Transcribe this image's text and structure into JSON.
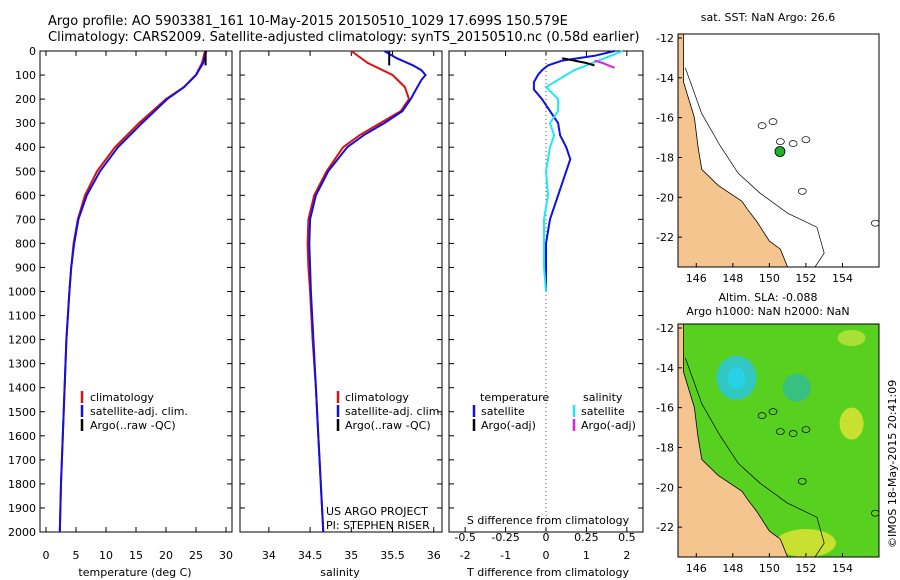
{
  "header": {
    "line1": "Argo profile: AO 5903381_161 10-May-2015 20150510_1029 17.699S 150.579E",
    "line2": "Climatology: CARS2009. Satellite-adjusted climatology: synTS_20150510.nc (0.58d earlier)"
  },
  "credits": {
    "project": "US ARGO PROJECT",
    "pi": "PI: STEPHEN RISER",
    "stamp": "©IMOS 18-May-2015 20:41:09"
  },
  "colors": {
    "red": "#e01010",
    "blue": "#1010e0",
    "black": "#000000",
    "cyan": "#20e8f0",
    "magenta": "#e020e0",
    "land": "#f5c590",
    "green_bg": "#58d020"
  },
  "chart_data": [
    {
      "type": "line",
      "id": "temperature",
      "xlabel": "temperature (deg C)",
      "ylabel": "",
      "xlim": [
        -1,
        31
      ],
      "ylim": [
        2000,
        0
      ],
      "xticks": [
        0,
        5,
        10,
        15,
        20,
        25,
        30
      ],
      "yticks": [
        0,
        100,
        200,
        300,
        400,
        500,
        600,
        700,
        800,
        900,
        1000,
        1100,
        1200,
        1300,
        1400,
        1500,
        1600,
        1700,
        1800,
        1900,
        2000
      ],
      "legend": [
        "climatology",
        "satellite-adj. clim.",
        "Argo(..raw -QC)"
      ],
      "series": [
        {
          "name": "climatology",
          "color": "red",
          "depth": [
            0,
            50,
            100,
            150,
            200,
            300,
            400,
            500,
            600,
            700,
            800,
            900,
            1000,
            1200,
            1400,
            1600,
            1800,
            2000
          ],
          "values": [
            26.5,
            26.0,
            25.0,
            23.0,
            20.0,
            15.5,
            11.5,
            8.5,
            6.5,
            5.3,
            4.6,
            4.2,
            3.9,
            3.4,
            3.1,
            2.8,
            2.5,
            2.3
          ]
        },
        {
          "name": "satellite-adj. clim.",
          "color": "blue",
          "depth": [
            0,
            50,
            100,
            150,
            200,
            300,
            400,
            500,
            600,
            700,
            800,
            900,
            1000,
            1200,
            1400,
            1600,
            1800,
            2000
          ],
          "values": [
            26.7,
            26.2,
            25.0,
            23.0,
            20.2,
            16.0,
            12.0,
            9.0,
            6.8,
            5.4,
            4.7,
            4.2,
            3.9,
            3.4,
            3.1,
            2.8,
            2.5,
            2.3
          ]
        },
        {
          "name": "Argo(..raw -QC)",
          "color": "black",
          "depth": [
            0,
            60
          ],
          "values": [
            26.6,
            26.6
          ]
        }
      ]
    },
    {
      "type": "line",
      "id": "salinity",
      "xlabel": "salinity",
      "xlim": [
        33.65,
        36.1
      ],
      "ylim": [
        2000,
        0
      ],
      "xticks": [
        34,
        34.5,
        35,
        35.5,
        36
      ],
      "legend": [
        "climatology",
        "satellite-adj. clim.",
        "Argo(..raw -QC)"
      ],
      "series": [
        {
          "name": "climatology",
          "color": "red",
          "depth": [
            0,
            50,
            100,
            150,
            200,
            250,
            300,
            350,
            400,
            500,
            600,
            700,
            800,
            900,
            1000,
            1200,
            1400,
            1600,
            1800,
            2000
          ],
          "values": [
            35.0,
            35.2,
            35.5,
            35.65,
            35.7,
            35.6,
            35.35,
            35.1,
            34.9,
            34.7,
            34.55,
            34.48,
            34.47,
            34.48,
            34.5,
            34.53,
            34.57,
            34.6,
            34.63,
            34.66
          ]
        },
        {
          "name": "satellite-adj. clim.",
          "color": "blue",
          "depth": [
            0,
            30,
            60,
            80,
            100,
            120,
            150,
            200,
            250,
            300,
            350,
            400,
            500,
            600,
            700,
            800,
            900,
            1000,
            1200,
            1400,
            1600,
            1800,
            2000
          ],
          "values": [
            35.4,
            35.55,
            35.75,
            35.85,
            35.9,
            35.85,
            35.8,
            35.72,
            35.62,
            35.4,
            35.15,
            34.95,
            34.72,
            34.57,
            34.5,
            34.49,
            34.5,
            34.51,
            34.54,
            34.57,
            34.6,
            34.63,
            34.66
          ]
        },
        {
          "name": "Argo(..raw -QC)",
          "color": "black",
          "depth": [
            0,
            60
          ],
          "values": [
            35.46,
            35.46
          ]
        }
      ]
    },
    {
      "type": "line",
      "id": "difference",
      "xlabel": "T difference from climatology",
      "xlabel_top": "S difference from climatology",
      "xlim": [
        -2.4,
        2.4
      ],
      "ylim": [
        2000,
        0
      ],
      "xticks": [
        -2,
        -1,
        0,
        1,
        2
      ],
      "xticks_s": [
        -0.5,
        -0.25,
        0,
        0.25,
        0.5
      ],
      "legend_temperature_title": "temperature",
      "legend_salinity_title": "salinity",
      "legend_temperature": [
        "satellite",
        "Argo(-adj)"
      ],
      "legend_salinity": [
        "satellite",
        "Argo(-adj)"
      ],
      "series": [
        {
          "name": "temperature satellite",
          "color": "blue",
          "depth": [
            0,
            20,
            40,
            60,
            80,
            100,
            130,
            160,
            200,
            250,
            300,
            350,
            400,
            450,
            500,
            600,
            700,
            800,
            900,
            1000
          ],
          "values": [
            1.7,
            1.2,
            0.4,
            0.05,
            -0.1,
            -0.2,
            -0.3,
            -0.3,
            -0.1,
            0.1,
            0.3,
            0.35,
            0.5,
            0.6,
            0.5,
            0.3,
            0.1,
            0.0,
            0.0,
            0.0
          ]
        },
        {
          "name": "salinity satellite",
          "color": "cyan",
          "depth": [
            0,
            20,
            40,
            60,
            80,
            100,
            150,
            200,
            250,
            300,
            350,
            400,
            500,
            600,
            700,
            800,
            900,
            1000
          ],
          "values": [
            1.9,
            1.6,
            1.3,
            1.0,
            0.7,
            0.5,
            0.0,
            0.3,
            0.3,
            0.1,
            0.2,
            0.1,
            0.0,
            0.05,
            -0.05,
            -0.05,
            -0.05,
            0.0
          ]
        },
        {
          "name": "temperature Argo(-adj)",
          "color": "black",
          "depth": [
            30,
            40,
            50,
            60
          ],
          "values": [
            0.4,
            0.7,
            1.0,
            1.2
          ]
        },
        {
          "name": "salinity Argo(-adj)",
          "color": "magenta",
          "depth": [
            40,
            50,
            60,
            70
          ],
          "values": [
            1.2,
            1.4,
            1.55,
            1.7
          ]
        }
      ]
    },
    {
      "type": "heatmap",
      "id": "sst-map",
      "title": "sat. SST: NaN Argo: 26.6",
      "xlim": [
        145,
        156
      ],
      "ylim": [
        -23.5,
        -11.8
      ],
      "xticks": [
        146,
        148,
        150,
        152,
        154
      ],
      "yticks": [
        -12,
        -14,
        -16,
        -18,
        -20,
        -22
      ],
      "argo_point": [
        150.58,
        -17.7
      ]
    },
    {
      "type": "heatmap",
      "id": "sla-map",
      "title": "Altim. SLA: -0.088",
      "subtitle": "Argo h1000: NaN h2000: NaN",
      "xlim": [
        145,
        156
      ],
      "ylim": [
        -23.5,
        -11.8
      ],
      "xticks": [
        146,
        148,
        150,
        152,
        154
      ],
      "yticks": [
        -12,
        -14,
        -16,
        -18,
        -20,
        -22
      ]
    }
  ]
}
